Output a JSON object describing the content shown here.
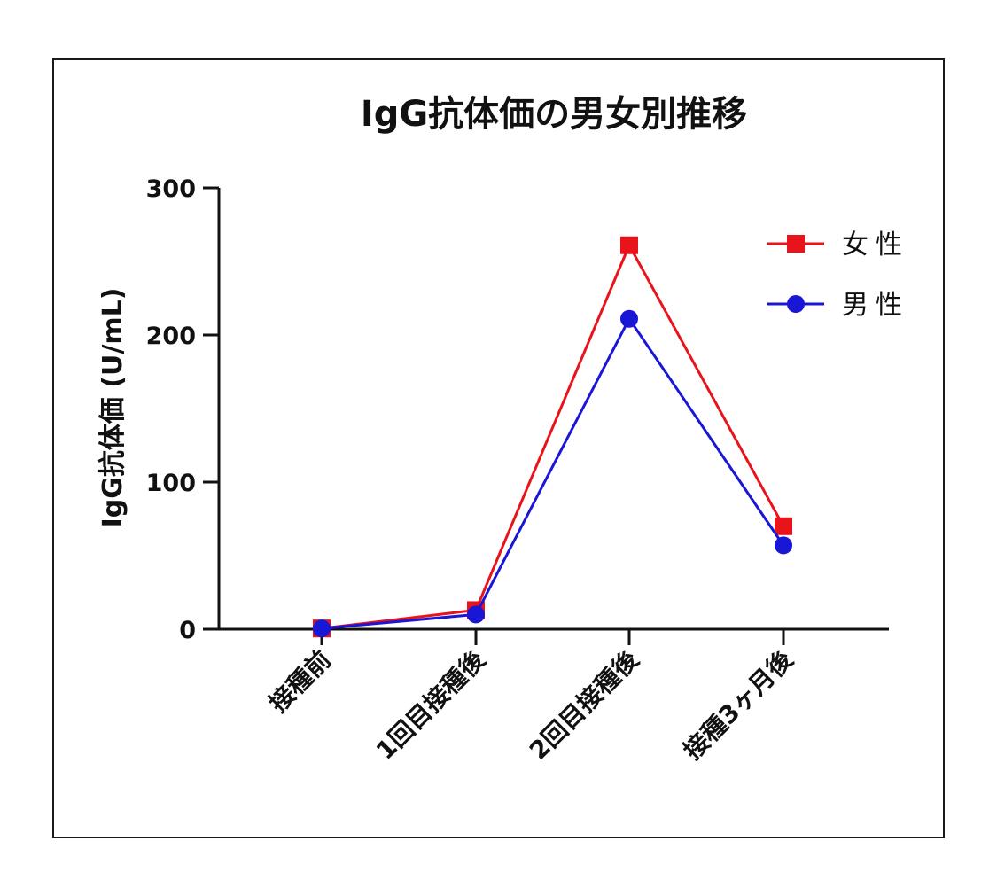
{
  "chart_data": {
    "type": "line",
    "title": "IgG抗体価の男女別推移",
    "ylabel": "IgG抗体価 (U/mL)",
    "xlabel": "",
    "categories": [
      "接種前",
      "1回目接種後",
      "2回目接種後",
      "接種3ヶ月後"
    ],
    "ylim": [
      0,
      300
    ],
    "yticks": [
      0,
      100,
      200,
      300
    ],
    "grid": false,
    "legend_position": "top-right",
    "series": [
      {
        "name": "女性",
        "color": "#e8131b",
        "marker": "square",
        "values": [
          0.5,
          13,
          261,
          70
        ]
      },
      {
        "name": "男性",
        "color": "#1a16d6",
        "marker": "circle",
        "values": [
          0.5,
          10,
          211,
          57
        ]
      }
    ]
  }
}
